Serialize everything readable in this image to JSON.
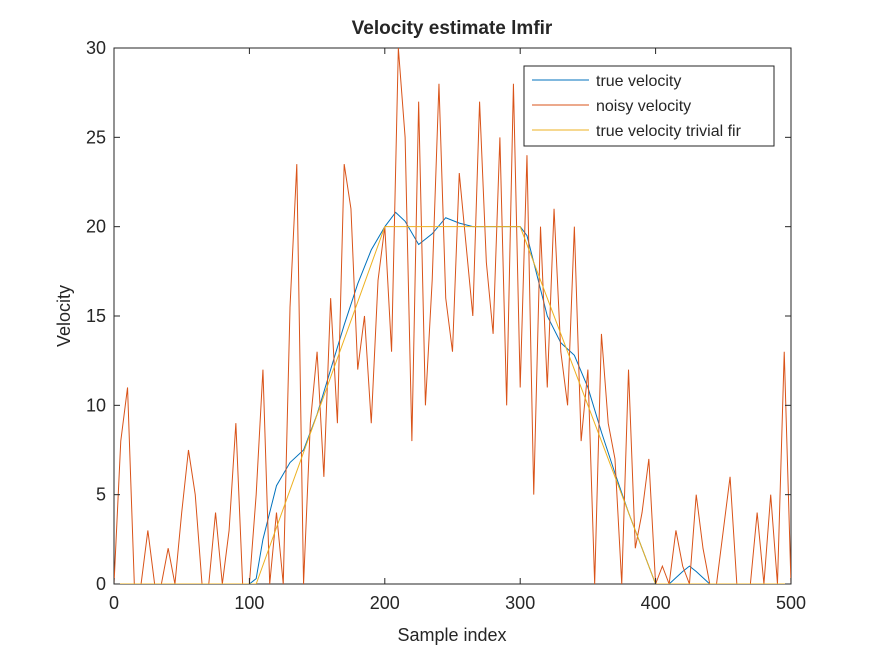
{
  "chart_data": {
    "type": "line",
    "title": "Velocity estimate lmfir",
    "x_label": "Sample index",
    "y_label": "Velocity",
    "xlim": [
      0,
      500
    ],
    "ylim": [
      0,
      30
    ],
    "xticks": [
      0,
      100,
      200,
      300,
      400,
      500
    ],
    "yticks": [
      0,
      5,
      10,
      15,
      20,
      25,
      30
    ],
    "grid": false,
    "legend": "upper right",
    "series": [
      {
        "name": "true velocity",
        "color": "#0072bd",
        "x": [
          0,
          100,
          105,
          110,
          120,
          130,
          140,
          150,
          160,
          170,
          180,
          190,
          200,
          208,
          215,
          225,
          235,
          245,
          255,
          265,
          300,
          305,
          310,
          320,
          330,
          340,
          350,
          360,
          370,
          380,
          390,
          400,
          410,
          420,
          425,
          430,
          440,
          500
        ],
        "values": [
          0,
          0,
          0.3,
          2.5,
          5.5,
          6.8,
          7.5,
          9.5,
          12,
          14.5,
          16.8,
          18.7,
          20,
          20.8,
          20.3,
          19,
          19.6,
          20.5,
          20.2,
          20,
          20,
          19.5,
          18,
          15,
          13.5,
          12.8,
          11,
          8.5,
          6.2,
          4,
          2,
          0,
          0,
          0.7,
          1,
          0.7,
          0,
          0
        ]
      },
      {
        "name": "noisy velocity",
        "color": "#d95319",
        "x": [
          0,
          5,
          10,
          15,
          20,
          25,
          30,
          35,
          40,
          45,
          50,
          55,
          60,
          65,
          70,
          75,
          80,
          85,
          90,
          95,
          100,
          105,
          110,
          115,
          120,
          125,
          130,
          135,
          140,
          145,
          150,
          155,
          160,
          165,
          170,
          175,
          180,
          185,
          190,
          195,
          200,
          205,
          210,
          215,
          220,
          225,
          230,
          235,
          240,
          245,
          250,
          255,
          260,
          265,
          270,
          275,
          280,
          285,
          290,
          295,
          300,
          305,
          310,
          315,
          320,
          325,
          330,
          335,
          340,
          345,
          350,
          355,
          360,
          365,
          370,
          375,
          380,
          385,
          390,
          395,
          400,
          405,
          410,
          415,
          420,
          425,
          430,
          435,
          440,
          445,
          450,
          455,
          460,
          465,
          470,
          475,
          480,
          485,
          490,
          495,
          500
        ],
        "values": [
          0,
          8,
          11,
          0,
          0,
          3,
          0,
          0,
          2,
          0,
          4,
          7.5,
          5,
          0,
          0,
          4,
          0,
          3,
          9,
          0,
          0,
          5,
          12,
          0,
          4,
          0,
          15.5,
          23.5,
          0,
          9,
          13,
          6,
          16,
          9,
          23.5,
          21,
          12,
          15,
          9,
          17,
          20,
          13,
          30,
          25,
          8,
          27,
          10,
          17,
          28,
          16,
          13,
          23,
          19,
          15,
          27,
          18,
          14,
          25,
          10,
          28,
          11,
          24,
          5,
          20,
          11,
          21,
          13,
          10,
          20,
          8,
          12,
          0,
          14,
          9,
          7,
          0,
          12,
          2,
          4,
          7,
          0,
          1,
          0,
          3,
          1,
          0,
          5,
          2,
          0,
          0,
          3,
          6,
          0,
          0,
          0,
          4,
          0,
          5,
          0,
          13,
          0
        ]
      },
      {
        "name": "true velocity trivial fir",
        "color": "#edb120",
        "x": [
          0,
          105,
          200,
          300,
          400,
          500
        ],
        "values": [
          0,
          0,
          20,
          20,
          0,
          0
        ]
      }
    ]
  }
}
